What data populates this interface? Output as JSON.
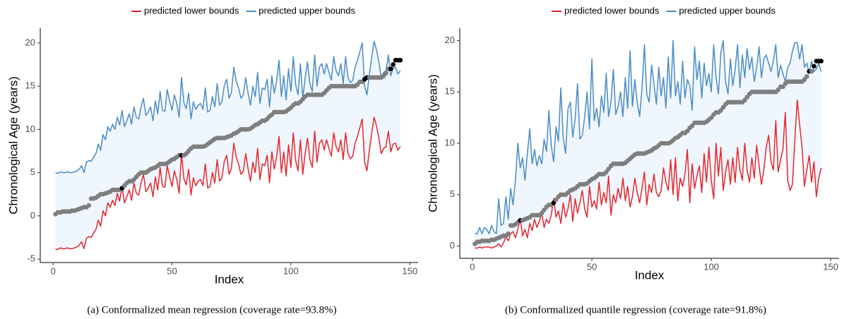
{
  "chart_data": [
    {
      "type": "line",
      "caption": "(a)  Conformalized mean regression (coverage rate=93.8%)",
      "xlabel": "Index",
      "ylabel": "Chronological Age (years)",
      "legend": "top",
      "band_color": "#f0f6fd",
      "xlim": [
        -5.4,
        153.5
      ],
      "xticks": [
        0,
        50,
        100,
        150
      ],
      "ylim": [
        -5.4,
        21.7
      ],
      "yticks": [
        -5,
        0,
        5,
        10,
        15,
        20
      ],
      "x": [
        1,
        2,
        3,
        4,
        5,
        6,
        7,
        8,
        9,
        10,
        11,
        12,
        13,
        14,
        15,
        16,
        17,
        18,
        19,
        20,
        21,
        22,
        23,
        24,
        25,
        26,
        27,
        28,
        29,
        30,
        31,
        32,
        33,
        34,
        35,
        36,
        37,
        38,
        39,
        40,
        41,
        42,
        43,
        44,
        45,
        46,
        47,
        48,
        49,
        50,
        51,
        52,
        53,
        54,
        55,
        56,
        57,
        58,
        59,
        60,
        61,
        62,
        63,
        64,
        65,
        66,
        67,
        68,
        69,
        70,
        71,
        72,
        73,
        74,
        75,
        76,
        77,
        78,
        79,
        80,
        81,
        82,
        83,
        84,
        85,
        86,
        87,
        88,
        89,
        90,
        91,
        92,
        93,
        94,
        95,
        96,
        97,
        98,
        99,
        100,
        101,
        102,
        103,
        104,
        105,
        106,
        107,
        108,
        109,
        110,
        111,
        112,
        113,
        114,
        115,
        116,
        117,
        118,
        119,
        120,
        121,
        122,
        123,
        124,
        125,
        126,
        127,
        128,
        129,
        130,
        131,
        132,
        133,
        134,
        135,
        136,
        137,
        138,
        139,
        140,
        141,
        142,
        143,
        144,
        145,
        146
      ],
      "series": [
        {
          "name": "predicted lower bounds",
          "color": "#e3262f",
          "values": [
            -3.8,
            -3.9,
            -3.7,
            -3.8,
            -3.8,
            -3.7,
            -3.8,
            -3.8,
            -3.7,
            -3.6,
            -3.4,
            -3.0,
            -3.8,
            -2.6,
            -2.4,
            -2.5,
            -2.0,
            -1.6,
            -0.5,
            -1.2,
            0.6,
            0.0,
            1.5,
            1.0,
            1.8,
            1.2,
            2.6,
            1.7,
            3.4,
            1.5,
            2.2,
            3.0,
            1.8,
            3.8,
            2.6,
            2.4,
            3.8,
            4.8,
            2.8,
            3.2,
            3.8,
            2.2,
            4.5,
            3.0,
            5.6,
            3.4,
            3.3,
            5.8,
            4.5,
            3.4,
            5.2,
            4.2,
            2.6,
            7.2,
            4.3,
            3.6,
            5.4,
            2.4,
            4.4,
            3.5,
            4.0,
            4.2,
            3.5,
            6.0,
            3.2,
            3.4,
            5.0,
            3.8,
            6.5,
            4.0,
            4.4,
            6.3,
            7.0,
            4.8,
            5.5,
            8.4,
            6.8,
            6.0,
            4.8,
            5.2,
            7.2,
            5.4,
            4.0,
            6.2,
            5.0,
            7.8,
            4.2,
            6.0,
            5.8,
            7.0,
            3.8,
            7.4,
            5.4,
            6.8,
            9.2,
            5.0,
            7.4,
            4.6,
            8.2,
            5.6,
            9.6,
            6.4,
            5.2,
            8.8,
            4.8,
            7.2,
            9.0,
            6.5,
            5.6,
            9.8,
            6.2,
            8.4,
            8.8,
            7.6,
            8.8,
            7.8,
            6.9,
            9.6,
            8.0,
            7.4,
            8.8,
            6.5,
            9.6,
            7.2,
            6.6,
            6.9,
            8.4,
            9.2,
            10.2,
            11.2,
            6.2,
            5.2,
            7.6,
            9.6,
            11.4,
            10.4,
            9.0,
            7.2,
            7.8,
            8.0,
            9.8,
            7.4,
            8.3,
            8.4,
            7.6,
            8.0
          ]
        },
        {
          "name": "predicted upper bounds",
          "color": "#4a8cc4",
          "values": [
            5.0,
            4.9,
            5.1,
            5.0,
            5.0,
            5.1,
            5.0,
            5.0,
            5.1,
            5.2,
            5.4,
            5.8,
            5.0,
            6.2,
            6.4,
            6.3,
            6.8,
            7.2,
            8.3,
            7.6,
            9.4,
            8.8,
            10.3,
            9.8,
            10.6,
            10.0,
            11.4,
            10.5,
            12.2,
            10.3,
            11.0,
            11.8,
            10.6,
            12.6,
            11.4,
            11.2,
            12.6,
            13.6,
            11.6,
            12.0,
            12.6,
            11.0,
            13.3,
            11.8,
            14.4,
            12.2,
            12.1,
            14.6,
            13.3,
            12.2,
            14.0,
            13.0,
            11.4,
            16.0,
            13.1,
            12.4,
            14.2,
            11.2,
            13.2,
            12.3,
            12.8,
            13.0,
            12.3,
            14.8,
            12.0,
            12.2,
            13.8,
            12.6,
            15.3,
            12.8,
            13.2,
            15.1,
            15.8,
            13.6,
            14.3,
            17.2,
            15.6,
            14.8,
            13.6,
            14.0,
            16.0,
            14.2,
            12.8,
            15.0,
            13.8,
            16.6,
            13.0,
            14.8,
            14.6,
            15.8,
            12.6,
            16.2,
            14.2,
            15.6,
            18.0,
            13.8,
            16.2,
            13.4,
            17.0,
            14.4,
            18.4,
            15.2,
            14.0,
            17.6,
            13.6,
            16.0,
            17.8,
            15.3,
            14.4,
            18.6,
            15.0,
            17.2,
            17.6,
            16.4,
            17.6,
            16.6,
            15.7,
            18.4,
            16.8,
            16.2,
            17.6,
            15.3,
            18.4,
            16.0,
            15.4,
            15.7,
            17.2,
            18.0,
            19.0,
            20.0,
            15.0,
            14.0,
            16.4,
            18.4,
            20.2,
            19.2,
            17.8,
            16.0,
            16.6,
            16.8,
            18.6,
            16.2,
            17.1,
            17.2,
            16.4,
            16.8
          ]
        }
      ],
      "observed": {
        "color": "#7f7f7f",
        "outside_color": "#000000",
        "values": [
          0.2,
          0.4,
          0.4,
          0.5,
          0.5,
          0.5,
          0.5,
          0.6,
          0.6,
          0.7,
          0.8,
          0.9,
          1,
          1,
          1.2,
          2,
          2,
          2.1,
          2.3,
          2.5,
          2.5,
          2.6,
          2.7,
          2.8,
          3,
          3,
          3,
          3,
          3.2,
          3.5,
          3.8,
          4,
          4,
          4.2,
          4.5,
          4.8,
          5,
          5,
          5,
          5.2,
          5.4,
          5.5,
          5.6,
          5.8,
          6,
          6,
          6,
          6.1,
          6.3,
          6.5,
          6.6,
          6.8,
          7,
          7,
          7,
          7.2,
          7.5,
          7.8,
          8,
          8,
          8,
          8,
          8,
          8.1,
          8.3,
          8.5,
          8.7,
          8.9,
          9,
          9,
          9,
          9,
          9.1,
          9.2,
          9.3,
          9.5,
          9.6,
          9.8,
          10,
          10,
          10,
          10,
          10.1,
          10.3,
          10.5,
          10.6,
          10.8,
          11,
          11,
          11.2,
          11.5,
          11.7,
          12,
          12,
          12,
          12,
          12,
          12.1,
          12.3,
          12.5,
          12.8,
          13,
          13,
          13.2,
          13.5,
          13.8,
          14,
          14,
          14,
          14,
          14,
          14,
          14,
          14.2,
          14.5,
          14.8,
          15,
          15,
          15,
          15,
          15,
          15,
          15,
          15,
          15,
          15,
          15,
          15.2,
          15.5,
          15.5,
          15.8,
          16,
          16,
          16,
          16,
          16,
          16,
          16,
          16.2,
          16.5,
          17,
          17,
          17.5,
          18,
          18,
          18
        ]
      }
    },
    {
      "type": "line",
      "caption": "(b)  Conformalized quantile regression (coverage rate=91.8%)",
      "xlabel": "Index",
      "ylabel": "Chronological Age (years)",
      "legend": "top",
      "band_color": "#f0f6fd",
      "xlim": [
        -5.3,
        153.5
      ],
      "xticks": [
        0,
        50,
        100,
        150
      ],
      "ylim": [
        -1.2,
        21.2
      ],
      "yticks": [
        0,
        5,
        10,
        15,
        20
      ],
      "x": [
        1,
        2,
        3,
        4,
        5,
        6,
        7,
        8,
        9,
        10,
        11,
        12,
        13,
        14,
        15,
        16,
        17,
        18,
        19,
        20,
        21,
        22,
        23,
        24,
        25,
        26,
        27,
        28,
        29,
        30,
        31,
        32,
        33,
        34,
        35,
        36,
        37,
        38,
        39,
        40,
        41,
        42,
        43,
        44,
        45,
        46,
        47,
        48,
        49,
        50,
        51,
        52,
        53,
        54,
        55,
        56,
        57,
        58,
        59,
        60,
        61,
        62,
        63,
        64,
        65,
        66,
        67,
        68,
        69,
        70,
        71,
        72,
        73,
        74,
        75,
        76,
        77,
        78,
        79,
        80,
        81,
        82,
        83,
        84,
        85,
        86,
        87,
        88,
        89,
        90,
        91,
        92,
        93,
        94,
        95,
        96,
        97,
        98,
        99,
        100,
        101,
        102,
        103,
        104,
        105,
        106,
        107,
        108,
        109,
        110,
        111,
        112,
        113,
        114,
        115,
        116,
        117,
        118,
        119,
        120,
        121,
        122,
        123,
        124,
        125,
        126,
        127,
        128,
        129,
        130,
        131,
        132,
        133,
        134,
        135,
        136,
        137,
        138,
        139,
        140,
        141,
        142,
        143,
        144,
        145,
        146
      ],
      "series": [
        {
          "name": "predicted lower bounds",
          "color": "#e3262f",
          "values": [
            -0.2,
            -0.2,
            -0.1,
            -0.2,
            -0.1,
            -0.1,
            -0.1,
            -0.2,
            -0.1,
            0.0,
            0.2,
            -0.1,
            0.3,
            0.9,
            0.5,
            1.2,
            1.4,
            0.8,
            1.6,
            2.6,
            1.0,
            1.6,
            0.8,
            2.2,
            1.5,
            2.6,
            1.8,
            2.4,
            3.2,
            1.8,
            2.6,
            2.2,
            3.0,
            4.6,
            2.8,
            3.4,
            2.2,
            4.2,
            2.8,
            3.6,
            5.0,
            2.4,
            4.6,
            3.2,
            4.2,
            5.4,
            3.6,
            2.8,
            5.8,
            3.8,
            4.4,
            3.6,
            6.2,
            4.0,
            5.2,
            4.2,
            6.8,
            3.0,
            5.0,
            4.2,
            5.6,
            4.6,
            6.6,
            4.4,
            5.8,
            3.8,
            4.8,
            6.6,
            5.2,
            4.2,
            5.6,
            7.2,
            4.0,
            6.0,
            5.2,
            7.0,
            5.2,
            4.8,
            5.4,
            7.6,
            6.2,
            5.4,
            8.4,
            5.0,
            8.6,
            4.4,
            6.6,
            5.8,
            7.0,
            9.4,
            4.2,
            8.0,
            5.6,
            6.8,
            7.8,
            5.2,
            9.0,
            6.2,
            9.6,
            6.4,
            4.6,
            10.0,
            6.8,
            9.6,
            5.4,
            7.2,
            8.4,
            6.0,
            8.6,
            6.2,
            9.6,
            7.4,
            6.4,
            10.0,
            7.4,
            6.2,
            8.6,
            6.6,
            9.8,
            7.8,
            6.0,
            7.4,
            9.6,
            10.8,
            8.2,
            7.4,
            12.2,
            7.2,
            8.4,
            9.4,
            13.0,
            6.4,
            5.4,
            6.0,
            10.4,
            14.2,
            11.8,
            9.6,
            5.8,
            7.4,
            8.8,
            6.2,
            8.2,
            4.8,
            6.6,
            7.6
          ]
        },
        {
          "name": "predicted upper bounds",
          "color": "#4a8cc4",
          "values": [
            1.2,
            1.2,
            1.8,
            1.2,
            1.8,
            1.6,
            1.2,
            2.0,
            1.4,
            1.2,
            4.6,
            2.0,
            2.2,
            4.8,
            2.6,
            5.6,
            4.0,
            6.4,
            10.0,
            7.6,
            8.6,
            6.4,
            9.0,
            11.4,
            8.0,
            9.4,
            7.8,
            8.8,
            8.0,
            10.4,
            9.2,
            13.2,
            9.8,
            8.2,
            11.6,
            10.2,
            15.4,
            10.6,
            9.0,
            13.4,
            14.0,
            10.6,
            12.4,
            15.8,
            10.4,
            10.8,
            12.6,
            15.0,
            11.4,
            18.2,
            12.2,
            13.4,
            11.6,
            14.6,
            13.0,
            16.8,
            12.6,
            14.0,
            17.2,
            12.8,
            13.6,
            15.0,
            12.6,
            16.4,
            13.4,
            19.0,
            13.6,
            16.2,
            14.0,
            12.6,
            15.4,
            19.6,
            14.8,
            14.0,
            17.6,
            15.8,
            13.8,
            17.4,
            14.6,
            16.4,
            13.4,
            18.4,
            14.4,
            20.0,
            14.6,
            16.0,
            13.8,
            18.0,
            14.4,
            16.2,
            15.6,
            13.2,
            19.4,
            16.2,
            18.0,
            14.4,
            17.8,
            15.6,
            16.8,
            15.0,
            19.6,
            16.4,
            14.8,
            18.8,
            20.0,
            16.0,
            14.8,
            18.2,
            15.6,
            17.2,
            19.6,
            15.4,
            18.6,
            16.4,
            19.2,
            17.2,
            18.4,
            16.0,
            17.4,
            19.4,
            16.4,
            18.2,
            18.6,
            17.8,
            17.0,
            18.0,
            19.6,
            16.4,
            17.6,
            16.8,
            16.0,
            17.4,
            17.8,
            19.0,
            19.8,
            19.8,
            18.2,
            19.6,
            17.4,
            17.8,
            16.8,
            18.0,
            17.0,
            17.2,
            17.8,
            17.0
          ]
        }
      ],
      "observed": {
        "color": "#7f7f7f",
        "outside_color": "#000000",
        "values": [
          0.2,
          0.4,
          0.4,
          0.5,
          0.5,
          0.5,
          0.5,
          0.6,
          0.6,
          0.7,
          0.8,
          0.9,
          1,
          1,
          1.2,
          2,
          2,
          2.1,
          2.3,
          2.5,
          2.5,
          2.6,
          2.7,
          2.8,
          3,
          3,
          3,
          3,
          3.2,
          3.5,
          3.8,
          4,
          4,
          4.2,
          4.5,
          4.8,
          5,
          5,
          5,
          5.2,
          5.4,
          5.5,
          5.6,
          5.8,
          6,
          6,
          6,
          6.1,
          6.3,
          6.5,
          6.6,
          6.8,
          7,
          7,
          7,
          7.2,
          7.5,
          7.8,
          8,
          8,
          8,
          8,
          8,
          8.1,
          8.3,
          8.5,
          8.7,
          8.9,
          9,
          9,
          9,
          9,
          9.1,
          9.2,
          9.3,
          9.5,
          9.6,
          9.8,
          10,
          10,
          10,
          10,
          10.1,
          10.3,
          10.5,
          10.6,
          10.8,
          11,
          11,
          11.2,
          11.5,
          11.7,
          12,
          12,
          12,
          12,
          12,
          12.1,
          12.3,
          12.5,
          12.8,
          13,
          13,
          13.2,
          13.5,
          13.8,
          14,
          14,
          14,
          14,
          14,
          14,
          14,
          14.2,
          14.5,
          14.8,
          15,
          15,
          15,
          15,
          15,
          15,
          15,
          15,
          15,
          15,
          15,
          15.2,
          15.5,
          15.5,
          15.8,
          16,
          16,
          16,
          16,
          16,
          16,
          16,
          16.2,
          16.5,
          17,
          17,
          17.5,
          18,
          18,
          18
        ]
      }
    }
  ]
}
